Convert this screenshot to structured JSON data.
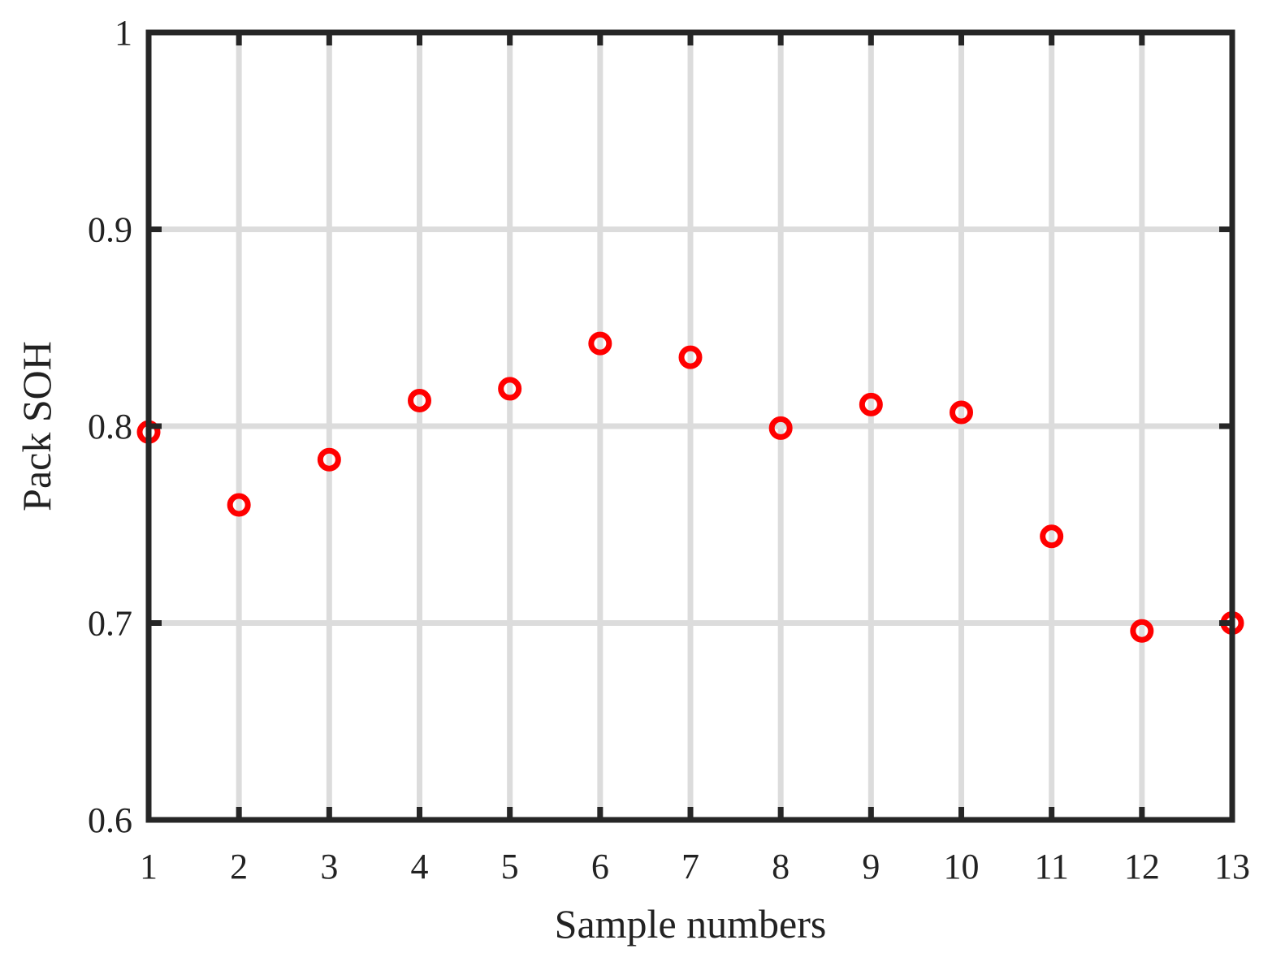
{
  "chart_data": {
    "type": "scatter",
    "title": "",
    "xlabel": "Sample numbers",
    "ylabel": "Pack SOH",
    "xlim": [
      1,
      13
    ],
    "ylim": [
      0.6,
      1
    ],
    "xticks": [
      1,
      2,
      3,
      4,
      5,
      6,
      7,
      8,
      9,
      10,
      11,
      12,
      13
    ],
    "xtick_labels": [
      "1",
      "2",
      "3",
      "4",
      "5",
      "6",
      "7",
      "8",
      "9",
      "10",
      "11",
      "12",
      "13"
    ],
    "yticks": [
      0.6,
      0.7,
      0.8,
      0.9,
      1
    ],
    "ytick_labels": [
      "0.6",
      "0.7",
      "0.8",
      "0.9",
      "1"
    ],
    "grid": true,
    "marker": "open-circle",
    "colors": {
      "marker": "#ff0000",
      "grid": "#dcdcdc",
      "axes": "#262626"
    },
    "series": [
      {
        "x": [
          1,
          2,
          3,
          4,
          5,
          6,
          7,
          8,
          9,
          10,
          11,
          12,
          13
        ],
        "y": [
          0.797,
          0.76,
          0.783,
          0.813,
          0.819,
          0.842,
          0.835,
          0.799,
          0.811,
          0.807,
          0.744,
          0.696,
          0.7
        ]
      }
    ]
  }
}
